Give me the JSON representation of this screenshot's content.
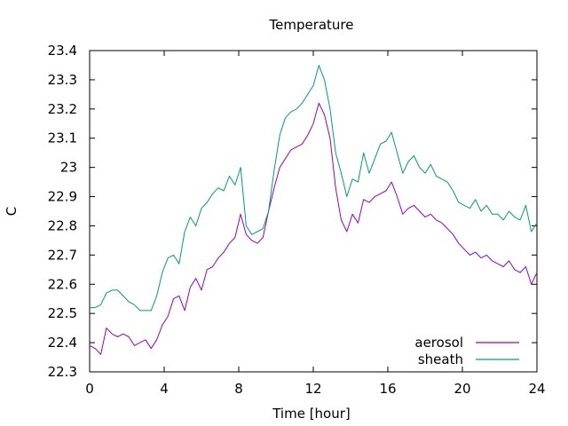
{
  "chart_data": {
    "type": "line",
    "title": "Temperature",
    "xlabel": "Time [hour]",
    "ylabel": "C",
    "xlim": [
      0,
      24
    ],
    "ylim": [
      22.3,
      23.4
    ],
    "xticks": [
      0,
      4,
      8,
      12,
      16,
      20,
      24
    ],
    "yticks": [
      22.3,
      22.4,
      22.5,
      22.6,
      22.7,
      22.8,
      22.9,
      23.0,
      23.1,
      23.2,
      23.3,
      23.4
    ],
    "xtick_labels": [
      "0",
      "4",
      "8",
      "12",
      "16",
      "20",
      "24"
    ],
    "ytick_labels": [
      "22.3",
      "22.4",
      "22.5",
      "22.6",
      "22.7",
      "22.8",
      "22.9",
      "23",
      "23.1",
      "23.2",
      "23.3",
      "23.4"
    ],
    "grid": false,
    "legend_position": "bottom-right",
    "series": [
      {
        "name": "aerosol",
        "color": "#9400d3",
        "x": [
          0,
          0.3,
          0.6,
          0.9,
          1.2,
          1.5,
          1.8,
          2.1,
          2.4,
          2.7,
          3.0,
          3.3,
          3.6,
          3.9,
          4.2,
          4.5,
          4.8,
          5.1,
          5.4,
          5.7,
          6.0,
          6.3,
          6.6,
          6.9,
          7.2,
          7.5,
          7.8,
          8.1,
          8.4,
          8.7,
          9.0,
          9.3,
          9.6,
          9.9,
          10.2,
          10.5,
          10.8,
          11.1,
          11.4,
          11.7,
          12.0,
          12.3,
          12.6,
          12.9,
          13.2,
          13.5,
          13.8,
          14.1,
          14.4,
          14.7,
          15.0,
          15.3,
          15.6,
          15.9,
          16.2,
          16.5,
          16.8,
          17.1,
          17.4,
          17.7,
          18.0,
          18.3,
          18.6,
          18.9,
          19.2,
          19.5,
          19.8,
          20.1,
          20.4,
          20.7,
          21.0,
          21.3,
          21.6,
          21.9,
          22.2,
          22.5,
          22.8,
          23.1,
          23.4,
          23.7,
          24.0
        ],
        "y": [
          22.39,
          22.38,
          22.36,
          22.45,
          22.43,
          22.42,
          22.43,
          22.42,
          22.39,
          22.4,
          22.41,
          22.38,
          22.41,
          22.46,
          22.49,
          22.55,
          22.56,
          22.51,
          22.59,
          22.62,
          22.58,
          22.65,
          22.66,
          22.69,
          22.71,
          22.74,
          22.76,
          22.84,
          22.77,
          22.75,
          22.74,
          22.76,
          22.85,
          22.93,
          23.0,
          23.03,
          23.06,
          23.07,
          23.08,
          23.11,
          23.15,
          23.22,
          23.18,
          23.1,
          22.93,
          22.82,
          22.78,
          22.84,
          22.81,
          22.89,
          22.88,
          22.9,
          22.91,
          22.92,
          22.95,
          22.9,
          22.84,
          22.86,
          22.87,
          22.85,
          22.83,
          22.84,
          22.82,
          22.81,
          22.79,
          22.77,
          22.74,
          22.72,
          22.7,
          22.71,
          22.69,
          22.7,
          22.68,
          22.67,
          22.66,
          22.68,
          22.65,
          22.64,
          22.66,
          22.6,
          22.64
        ]
      },
      {
        "name": "sheath",
        "color": "#009e73",
        "x": [
          0,
          0.3,
          0.6,
          0.9,
          1.2,
          1.5,
          1.8,
          2.1,
          2.4,
          2.7,
          3.0,
          3.3,
          3.6,
          3.9,
          4.2,
          4.5,
          4.8,
          5.1,
          5.4,
          5.7,
          6.0,
          6.3,
          6.6,
          6.9,
          7.2,
          7.5,
          7.8,
          8.1,
          8.4,
          8.7,
          9.0,
          9.3,
          9.6,
          9.9,
          10.2,
          10.5,
          10.8,
          11.1,
          11.4,
          11.7,
          12.0,
          12.3,
          12.6,
          12.9,
          13.2,
          13.5,
          13.8,
          14.1,
          14.4,
          14.7,
          15.0,
          15.3,
          15.6,
          15.9,
          16.2,
          16.5,
          16.8,
          17.1,
          17.4,
          17.7,
          18.0,
          18.3,
          18.6,
          18.9,
          19.2,
          19.5,
          19.8,
          20.1,
          20.4,
          20.7,
          21.0,
          21.3,
          21.6,
          21.9,
          22.2,
          22.5,
          22.8,
          23.1,
          23.4,
          23.7,
          24.0
        ],
        "y": [
          22.52,
          22.52,
          22.53,
          22.57,
          22.58,
          22.58,
          22.56,
          22.54,
          22.53,
          22.51,
          22.51,
          22.51,
          22.56,
          22.64,
          22.69,
          22.7,
          22.67,
          22.78,
          22.83,
          22.8,
          22.86,
          22.88,
          22.91,
          22.93,
          22.92,
          22.97,
          22.94,
          23.0,
          22.8,
          22.77,
          22.78,
          22.79,
          22.85,
          22.99,
          23.11,
          23.17,
          23.19,
          23.2,
          23.22,
          23.25,
          23.28,
          23.35,
          23.3,
          23.2,
          23.05,
          22.98,
          22.9,
          22.96,
          22.95,
          23.05,
          22.98,
          23.03,
          23.08,
          23.09,
          23.12,
          23.05,
          22.98,
          23.02,
          23.04,
          23.0,
          22.98,
          23.01,
          22.97,
          22.96,
          22.95,
          22.92,
          22.88,
          22.87,
          22.86,
          22.89,
          22.85,
          22.87,
          22.84,
          22.84,
          22.82,
          22.85,
          22.83,
          22.82,
          22.87,
          22.78,
          22.81
        ]
      }
    ]
  }
}
